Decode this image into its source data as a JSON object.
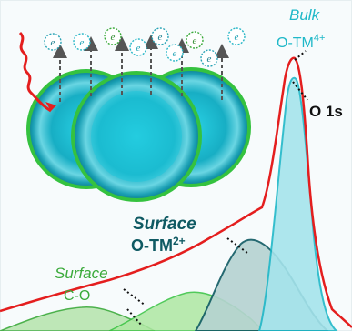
{
  "labels": {
    "bulk_title": "Bulk",
    "bulk_species": "O-TM",
    "bulk_charge": "4+",
    "core_level": "O 1s",
    "surface2_title": "Surface",
    "surface2_species": "O-TM",
    "surface2_charge": "2+",
    "surface1_title": "Surface",
    "surface1_species": "C-O"
  },
  "electron_symbol": "e",
  "colors": {
    "bulk": "#1fb8c8",
    "surface_tm": "#0f5a63",
    "surface_co": "#3aaa3a",
    "spectrum": "#e41e1e",
    "particle_rim": "#35c23f",
    "arrow": "#555555"
  },
  "icons": [
    "xray-photon-icon",
    "electron-icon",
    "emission-arrow-icon",
    "particle-sphere-icon"
  ]
}
